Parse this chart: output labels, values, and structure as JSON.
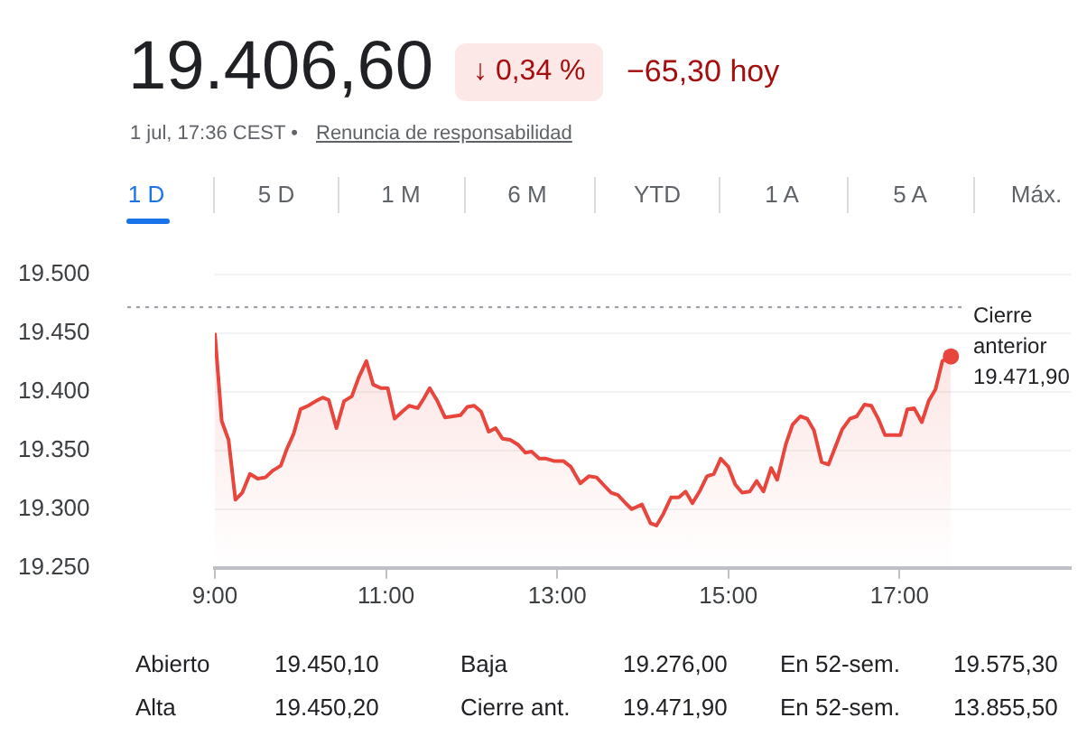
{
  "chart_data": {
    "type": "area",
    "title": "19.406,60",
    "annotations": [
      "↓ 0,34 %",
      "−65,30 hoy",
      "1 jul, 17:36 CEST •",
      "Renuncia de responsabilidad",
      "1 D",
      "5 D",
      "1 M",
      "6 M",
      "YTD",
      "1 A",
      "5 A",
      "Máx.",
      "Abierto",
      "19.450,10",
      "Baja",
      "19.276,00",
      "En 52-sem.",
      "19.575,30",
      "Alta",
      "19.450,20",
      "Cierre ant.",
      "19.471,90",
      "En 52-sem.",
      "13.855,50"
    ],
    "x": [
      9.0,
      9.08,
      9.16,
      9.24,
      9.32,
      9.41,
      9.5,
      9.59,
      9.68,
      9.77,
      9.84,
      9.92,
      10.0,
      10.09,
      10.18,
      10.26,
      10.33,
      10.42,
      10.51,
      10.6,
      10.68,
      10.77,
      10.85,
      10.94,
      11.02,
      11.1,
      11.19,
      11.27,
      11.37,
      11.44,
      11.51,
      11.6,
      11.69,
      11.78,
      11.87,
      11.95,
      12.03,
      12.11,
      12.2,
      12.28,
      12.36,
      12.45,
      12.54,
      12.63,
      12.7,
      12.79,
      12.87,
      12.96,
      13.07,
      13.16,
      13.27,
      13.37,
      13.46,
      13.55,
      13.63,
      13.71,
      13.8,
      13.87,
      13.99,
      14.09,
      14.16,
      14.24,
      14.33,
      14.42,
      14.5,
      14.58,
      14.67,
      14.75,
      14.83,
      14.91,
      15.0,
      15.08,
      15.16,
      15.25,
      15.33,
      15.41,
      15.5,
      15.57,
      15.67,
      15.75,
      15.84,
      15.92,
      16.0,
      16.09,
      16.17,
      16.25,
      16.33,
      16.42,
      16.5,
      16.59,
      16.67,
      16.75,
      16.83,
      16.92,
      17.01,
      17.09,
      17.17,
      17.26,
      17.34,
      17.42,
      17.5,
      17.6
    ],
    "series": [
      {
        "color": "#e8453c",
        "values": [
          19450,
          19375,
          19359,
          19308,
          19314,
          19330,
          19326,
          19327,
          19333,
          19337,
          19351,
          19364,
          19385,
          19388,
          19392,
          19395,
          19393,
          19369,
          19392,
          19396,
          19412,
          19426,
          19406,
          19403,
          19403,
          19377,
          19383,
          19388,
          19386,
          19394,
          19403,
          19392,
          19378,
          19379,
          19380,
          19387,
          19388,
          19383,
          19366,
          19369,
          19360,
          19359,
          19355,
          19348,
          19349,
          19343,
          19343,
          19341,
          19341,
          19336,
          19322,
          19328,
          19327,
          19320,
          19314,
          19312,
          19305,
          19300,
          19304,
          19288,
          19286,
          19296,
          19310,
          19310,
          19315,
          19305,
          19316,
          19328,
          19330,
          19343,
          19336,
          19321,
          19314,
          19315,
          19324,
          19315,
          19335,
          19325,
          19355,
          19372,
          19379,
          19377,
          19367,
          19340,
          19338,
          19353,
          19368,
          19377,
          19379,
          19389,
          19388,
          19377,
          19363,
          19363,
          19363,
          19385,
          19386,
          19374,
          19392,
          19402,
          19426,
          19430
        ]
      }
    ],
    "xlim": [
      9,
      19
    ],
    "xticks": [
      {
        "value": 9,
        "label": "9:00"
      },
      {
        "value": 11,
        "label": "11:00"
      },
      {
        "value": 13,
        "label": "13:00"
      },
      {
        "value": 15,
        "label": "15:00"
      },
      {
        "value": 17,
        "label": "17:00"
      }
    ],
    "ylim": [
      19250,
      19500
    ],
    "yticks": [
      {
        "value": 19250,
        "label": "19.250"
      },
      {
        "value": 19300,
        "label": "19.300"
      },
      {
        "value": 19350,
        "label": "19.350"
      },
      {
        "value": 19400,
        "label": "19.400"
      },
      {
        "value": 19450,
        "label": "19.450"
      },
      {
        "value": 19500,
        "label": "19.500"
      }
    ],
    "ref_lines": [
      {
        "axis": "y",
        "value": 19471.9,
        "label": "Cierre anterior 19.471,90",
        "line_style": "dotted",
        "color": "#9aa0a6"
      }
    ],
    "grid": "y",
    "legend": false,
    "marker": "none",
    "line_style": "solid"
  }
}
